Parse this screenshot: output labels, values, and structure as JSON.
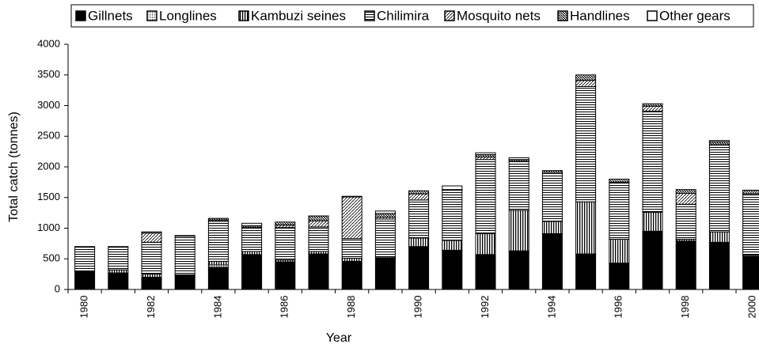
{
  "chart_data": {
    "type": "stacked-bar",
    "xlabel": "Year",
    "ylabel": "Total catch (tonnes)",
    "categories": [
      "1980",
      null,
      "1982",
      null,
      "1984",
      null,
      "1986",
      null,
      "1988",
      null,
      "1990",
      null,
      "1992",
      null,
      "1994",
      null,
      "1996",
      null,
      "1998",
      null,
      "2000"
    ],
    "ylim": [
      0,
      4000
    ],
    "yticks": [
      0,
      500,
      1000,
      1500,
      2000,
      2500,
      3000,
      3500,
      4000
    ],
    "series": [
      {
        "name": "Gillnets",
        "color": "#000000",
        "pattern": "solid",
        "values": [
          290,
          270,
          200,
          240,
          360,
          570,
          450,
          580,
          460,
          510,
          700,
          640,
          570,
          630,
          910,
          580,
          430,
          950,
          790,
          770,
          540
        ]
      },
      {
        "name": "Longlines",
        "color": "#000000",
        "pattern": "dots",
        "values": [
          0,
          0,
          0,
          0,
          40,
          0,
          0,
          0,
          0,
          0,
          0,
          0,
          0,
          0,
          0,
          0,
          0,
          0,
          0,
          0,
          0
        ]
      },
      {
        "name": "Kambuzi seines",
        "color": "#000000",
        "pattern": "vertical",
        "values": [
          10,
          50,
          50,
          0,
          60,
          50,
          30,
          40,
          50,
          20,
          140,
          160,
          340,
          660,
          200,
          850,
          390,
          310,
          30,
          170,
          20
        ]
      },
      {
        "name": "Chilimira",
        "color": "#000000",
        "pattern": "horizontal",
        "values": [
          390,
          370,
          520,
          630,
          650,
          390,
          530,
          400,
          320,
          620,
          620,
          820,
          1210,
          800,
          800,
          1880,
          930,
          1650,
          570,
          1420,
          1000
        ]
      },
      {
        "name": "Mosquito nets",
        "color": "#000000",
        "pattern": "diagonal",
        "values": [
          0,
          0,
          150,
          0,
          20,
          0,
          40,
          100,
          680,
          30,
          100,
          0,
          40,
          0,
          0,
          100,
          0,
          80,
          180,
          0,
          0
        ]
      },
      {
        "name": "Handlines",
        "color": "#000000",
        "pattern": "diagonal-dense",
        "values": [
          0,
          10,
          20,
          10,
          30,
          30,
          50,
          80,
          10,
          60,
          50,
          10,
          40,
          30,
          30,
          90,
          50,
          40,
          60,
          50,
          60
        ]
      },
      {
        "name": "Other gears",
        "color": "#000000",
        "pattern": "none",
        "values": [
          10,
          0,
          0,
          0,
          0,
          40,
          0,
          0,
          0,
          40,
          0,
          60,
          30,
          30,
          0,
          0,
          0,
          0,
          0,
          20,
          0
        ]
      }
    ]
  }
}
